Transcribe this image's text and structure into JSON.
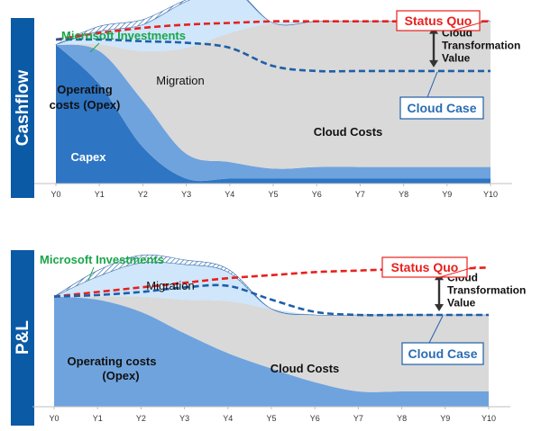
{
  "chart_data": [
    {
      "type": "area",
      "panel_label": "Cashflow",
      "x": [
        "Y0",
        "Y1",
        "Y2",
        "Y3",
        "Y4",
        "Y5",
        "Y6",
        "Y7",
        "Y8",
        "Y9",
        "Y10"
      ],
      "ylim": [
        0,
        100
      ],
      "series": [
        {
          "name": "Capex",
          "values": [
            84,
            60,
            22,
            3,
            3,
            3,
            3,
            3,
            3,
            3,
            3
          ]
        },
        {
          "name": "Operating costs (Opex)",
          "values": [
            0,
            20,
            28,
            15,
            10,
            6,
            7,
            7,
            7,
            7,
            7
          ]
        },
        {
          "name": "Cloud Costs",
          "values": [
            0,
            4,
            30,
            64,
            78,
            88,
            88,
            88,
            88,
            88,
            88
          ]
        },
        {
          "name": "Migration",
          "values": [
            0,
            8,
            16,
            28,
            27,
            0,
            0,
            0,
            0,
            0,
            0
          ]
        },
        {
          "name": "Microsoft Investments",
          "values": [
            0,
            3,
            3,
            1,
            1,
            0,
            0,
            0,
            0,
            0,
            0
          ]
        }
      ],
      "status_quo": [
        87,
        91,
        94,
        96,
        97,
        98,
        98,
        98,
        98,
        98,
        98
      ],
      "cloud_case": [
        87,
        87,
        86,
        85,
        82,
        71,
        68,
        68,
        68,
        68,
        68
      ],
      "labels": {
        "microsoft_investments": "Microsoft Investments",
        "migration": "Migration",
        "opex": [
          "Operating",
          "costs (Opex)"
        ],
        "capex": "Capex",
        "cloud_costs": "Cloud Costs",
        "status_quo": "Status Quo",
        "cloud_case": "Cloud Case",
        "ctv": [
          "Cloud",
          "Transformation",
          "Value"
        ]
      }
    },
    {
      "type": "area",
      "panel_label": "P&L",
      "x": [
        "Y0",
        "Y1",
        "Y2",
        "Y3",
        "Y4",
        "Y5",
        "Y6",
        "Y7",
        "Y8",
        "Y9",
        "Y10"
      ],
      "ylim": [
        0,
        100
      ],
      "series": [
        {
          "name": "Operating costs (Opex)",
          "values": [
            72,
            70,
            62,
            48,
            35,
            25,
            16,
            10,
            10,
            10,
            10
          ]
        },
        {
          "name": "Cloud Costs",
          "values": [
            0,
            2,
            10,
            22,
            34,
            39,
            44,
            50,
            50,
            50,
            50
          ]
        },
        {
          "name": "Migration",
          "values": [
            0,
            13,
            22,
            23,
            19,
            0,
            0,
            0,
            0,
            0,
            0
          ]
        },
        {
          "name": "Microsoft Investments",
          "values": [
            0,
            4,
            5,
            3,
            2,
            0,
            0,
            0,
            0,
            0,
            0
          ]
        }
      ],
      "status_quo": [
        72,
        75,
        78,
        81,
        84,
        86,
        88,
        89,
        90,
        90,
        91
      ],
      "cloud_case": [
        72,
        73,
        75,
        78,
        79,
        70,
        62,
        60,
        60,
        60,
        60
      ],
      "labels": {
        "microsoft_investments": "Microsoft Investments",
        "migration": "Migration",
        "opex": [
          "Operating costs",
          "(Opex)"
        ],
        "cloud_costs": "Cloud Costs",
        "status_quo": "Status Quo",
        "cloud_case": "Cloud Case",
        "ctv": [
          "Cloud",
          "Transformation",
          "Value"
        ]
      }
    }
  ],
  "colors": {
    "panel_blue": "#0a5aa6",
    "capex": "#2e75c4",
    "opex": "#6fa3dd",
    "cloud_costs": "#d9d9d9",
    "migration": "#cfe6fb",
    "investments": "#bcd2ea",
    "status_quo_line": "#e8201c",
    "cloud_case_line": "#1e5fa8",
    "green_text": "#1aa64a"
  }
}
